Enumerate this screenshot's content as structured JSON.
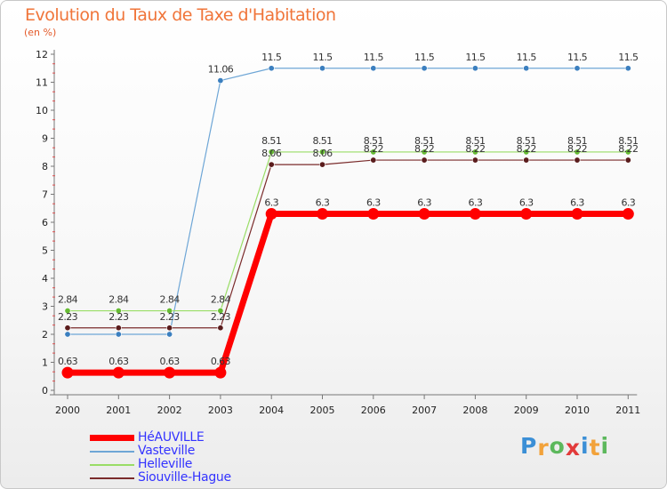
{
  "chart_data": {
    "type": "line",
    "title": "Evolution du Taux de Taxe d'Habitation",
    "ylabel": "(en %)",
    "xlabel": "",
    "categories": [
      "2000",
      "2001",
      "2002",
      "2003",
      "2004",
      "2005",
      "2006",
      "2007",
      "2008",
      "2009",
      "2010",
      "2011"
    ],
    "ylim": [
      0,
      12
    ],
    "yticks": [
      "0",
      "1",
      "2",
      "3",
      "4",
      "5",
      "6",
      "7",
      "8",
      "9",
      "10",
      "11",
      "12"
    ],
    "grid": false,
    "legend_position": "bottom-left",
    "series": [
      {
        "name": "HéAUVILLE",
        "color": "#ff0000",
        "values": [
          0.63,
          0.63,
          0.63,
          0.63,
          6.3,
          6.3,
          6.3,
          6.3,
          6.3,
          6.3,
          6.3,
          6.3
        ],
        "labels": [
          "0.63",
          "0.63",
          "0.63",
          "0.63",
          "6.3",
          "6.3",
          "6.3",
          "6.3",
          "6.3",
          "6.3",
          "6.3",
          "6.3"
        ]
      },
      {
        "name": "Vasteville",
        "color": "#6ea6d6",
        "values": [
          2.0,
          2.0,
          2.0,
          11.06,
          11.5,
          11.5,
          11.5,
          11.5,
          11.5,
          11.5,
          11.5,
          11.5
        ],
        "labels": [
          "",
          "",
          "",
          "11.06",
          "11.5",
          "11.5",
          "11.5",
          "11.5",
          "11.5",
          "11.5",
          "11.5",
          "11.5"
        ]
      },
      {
        "name": "Helleville",
        "color": "#99dd66",
        "values": [
          2.84,
          2.84,
          2.84,
          2.84,
          8.51,
          8.51,
          8.51,
          8.51,
          8.51,
          8.51,
          8.51,
          8.51
        ],
        "labels": [
          "2.84",
          "2.84",
          "2.84",
          "2.84",
          "8.51",
          "8.51",
          "8.51",
          "8.51",
          "8.51",
          "8.51",
          "8.51",
          "8.51"
        ]
      },
      {
        "name": "Siouville-Hague",
        "color": "#7a2b2b",
        "values": [
          2.23,
          2.23,
          2.23,
          2.23,
          8.06,
          8.06,
          8.22,
          8.22,
          8.22,
          8.22,
          8.22,
          8.22
        ],
        "labels": [
          "2.23",
          "2.23",
          "2.23",
          "2.23",
          "8.06",
          "8.06",
          "8.22",
          "8.22",
          "8.22",
          "8.22",
          "8.22",
          "8.22"
        ]
      }
    ]
  },
  "brand": {
    "letters": [
      "P",
      "r",
      "o",
      "x",
      "i",
      "t",
      "i"
    ],
    "colors": [
      "#3b8fd6",
      "#f2a23a",
      "#5cb85c",
      "#e23a3a",
      "#3b8fd6",
      "#f2a23a",
      "#5cb85c"
    ]
  }
}
